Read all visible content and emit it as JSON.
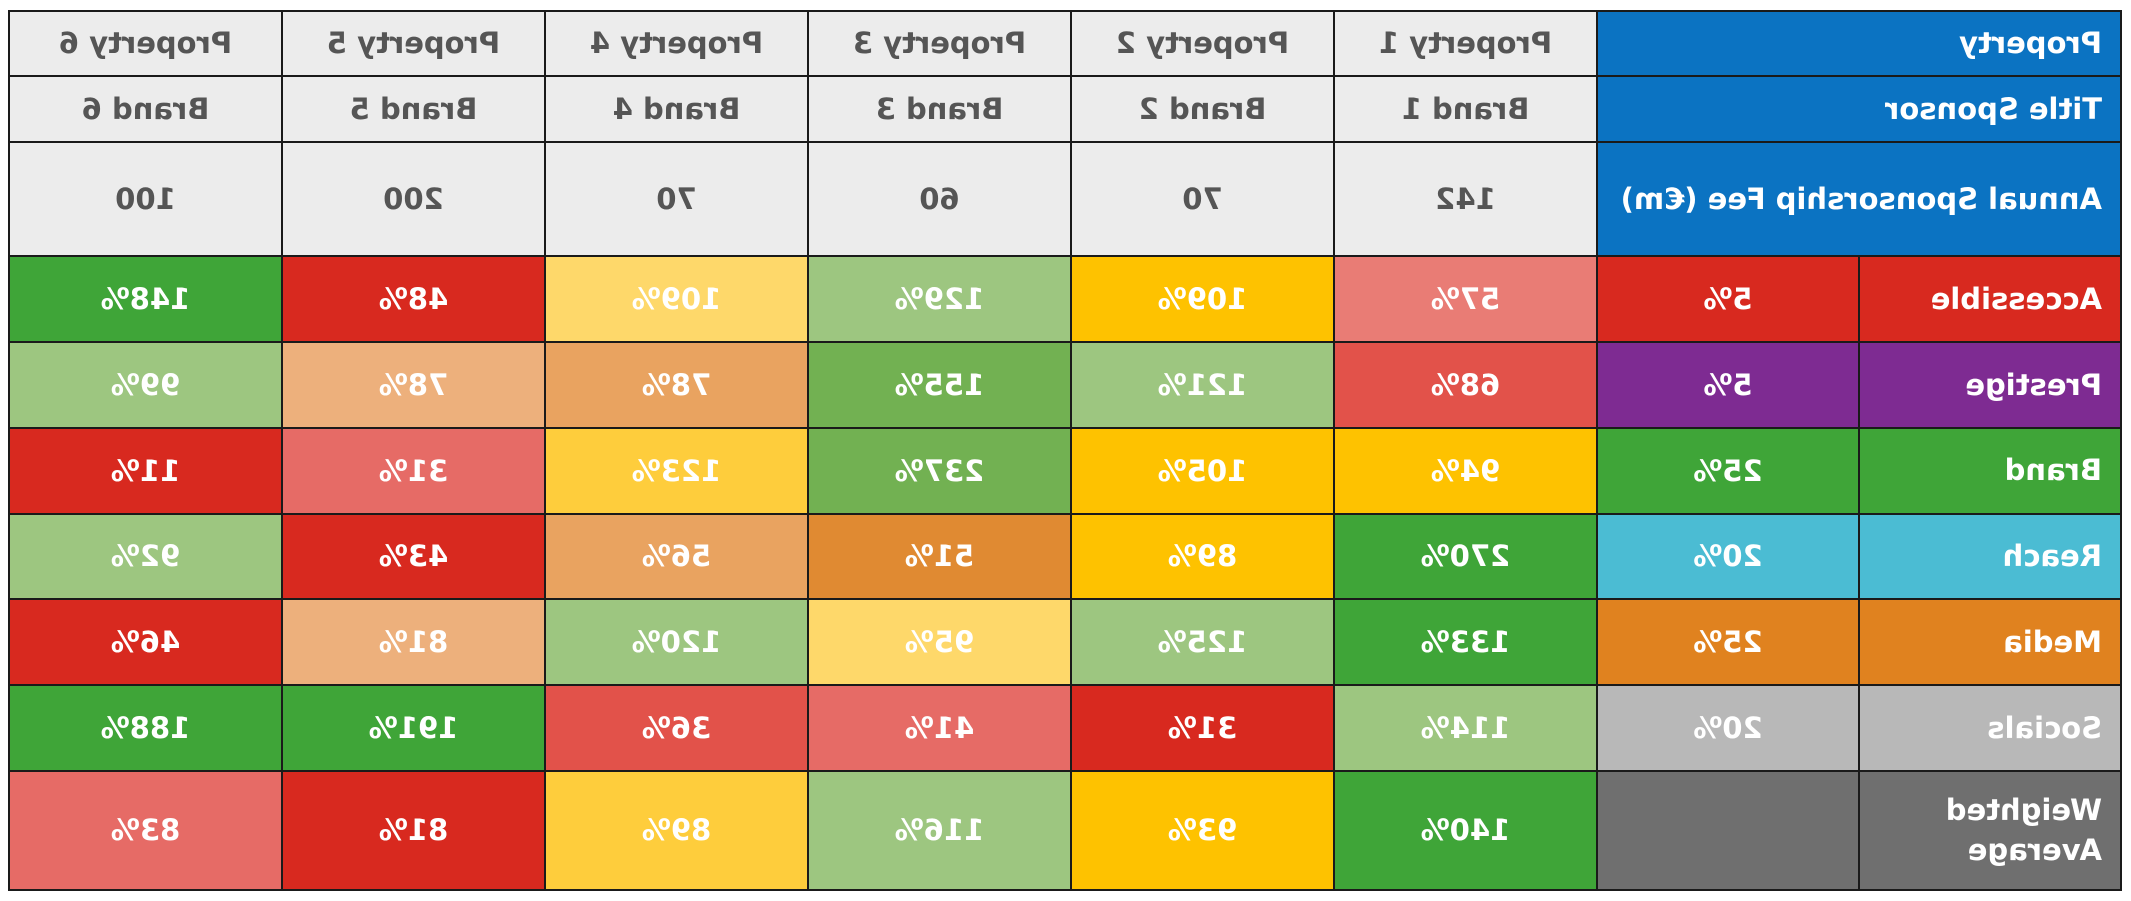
{
  "header_labels": {
    "property": "Property",
    "title_sponsor": "Title Sponsor",
    "fee": "Annual Sponsorship Fee (€m)"
  },
  "properties": [
    "Property 1",
    "Property 2",
    "Property 3",
    "Property 4",
    "Property 5",
    "Property 6"
  ],
  "sponsors": [
    "Brand 1",
    "Brand 2",
    "Brand 3",
    "Brand 4",
    "Brand 5",
    "Brand 6"
  ],
  "fees": [
    "142",
    "70",
    "60",
    "70",
    "200",
    "100"
  ],
  "rows": [
    {
      "criterion": "Accessible",
      "weight": "5%",
      "criterion_color": "#d8291f",
      "values": [
        "57%",
        "109%",
        "129%",
        "109%",
        "48%",
        "148%"
      ],
      "cell_colors": [
        "#e97c75",
        "#fec200",
        "#9dc680",
        "#fed86a",
        "#d8291f",
        "#3fa538"
      ]
    },
    {
      "criterion": "Prestige",
      "weight": "5%",
      "criterion_color": "#7e2b92",
      "values": [
        "68%",
        "121%",
        "155%",
        "78%",
        "78%",
        "99%"
      ],
      "cell_colors": [
        "#e2524a",
        "#9dc680",
        "#72b152",
        "#e9a360",
        "#edb07c",
        "#9dc680"
      ]
    },
    {
      "criterion": "Brand",
      "weight": "25%",
      "criterion_color": "#3fa538",
      "values": [
        "94%",
        "105%",
        "237%",
        "123%",
        "31%",
        "11%"
      ],
      "cell_colors": [
        "#fec200",
        "#fec200",
        "#72b152",
        "#fecd3c",
        "#e66b66",
        "#d8291f"
      ]
    },
    {
      "criterion": "Reach",
      "weight": "20%",
      "criterion_color": "#4bbcd3",
      "values": [
        "270%",
        "89%",
        "51%",
        "56%",
        "43%",
        "92%"
      ],
      "cell_colors": [
        "#3fa538",
        "#fec200",
        "#e08a32",
        "#e9a360",
        "#d8291f",
        "#9dc680"
      ]
    },
    {
      "criterion": "Media",
      "weight": "25%",
      "criterion_color": "#e0821f",
      "values": [
        "133%",
        "125%",
        "95%",
        "120%",
        "81%",
        "46%"
      ],
      "cell_colors": [
        "#3fa538",
        "#9dc680",
        "#fed86a",
        "#9dc680",
        "#edb07c",
        "#d8291f"
      ]
    },
    {
      "criterion": "Socials",
      "weight": "20%",
      "criterion_color": "#b8b8b8",
      "values": [
        "114%",
        "31%",
        "41%",
        "36%",
        "191%",
        "188%"
      ],
      "cell_colors": [
        "#9dc680",
        "#d8291f",
        "#e66b66",
        "#e2524a",
        "#3fa538",
        "#3fa538"
      ]
    },
    {
      "criterion": "Weighted Average",
      "weight": "",
      "criterion_color": "#6f6f6f",
      "values": [
        "140%",
        "93%",
        "116%",
        "89%",
        "81%",
        "83%"
      ],
      "cell_colors": [
        "#3fa538",
        "#fec200",
        "#9dc680",
        "#fecd3c",
        "#d8291f",
        "#e66b66"
      ]
    }
  ]
}
